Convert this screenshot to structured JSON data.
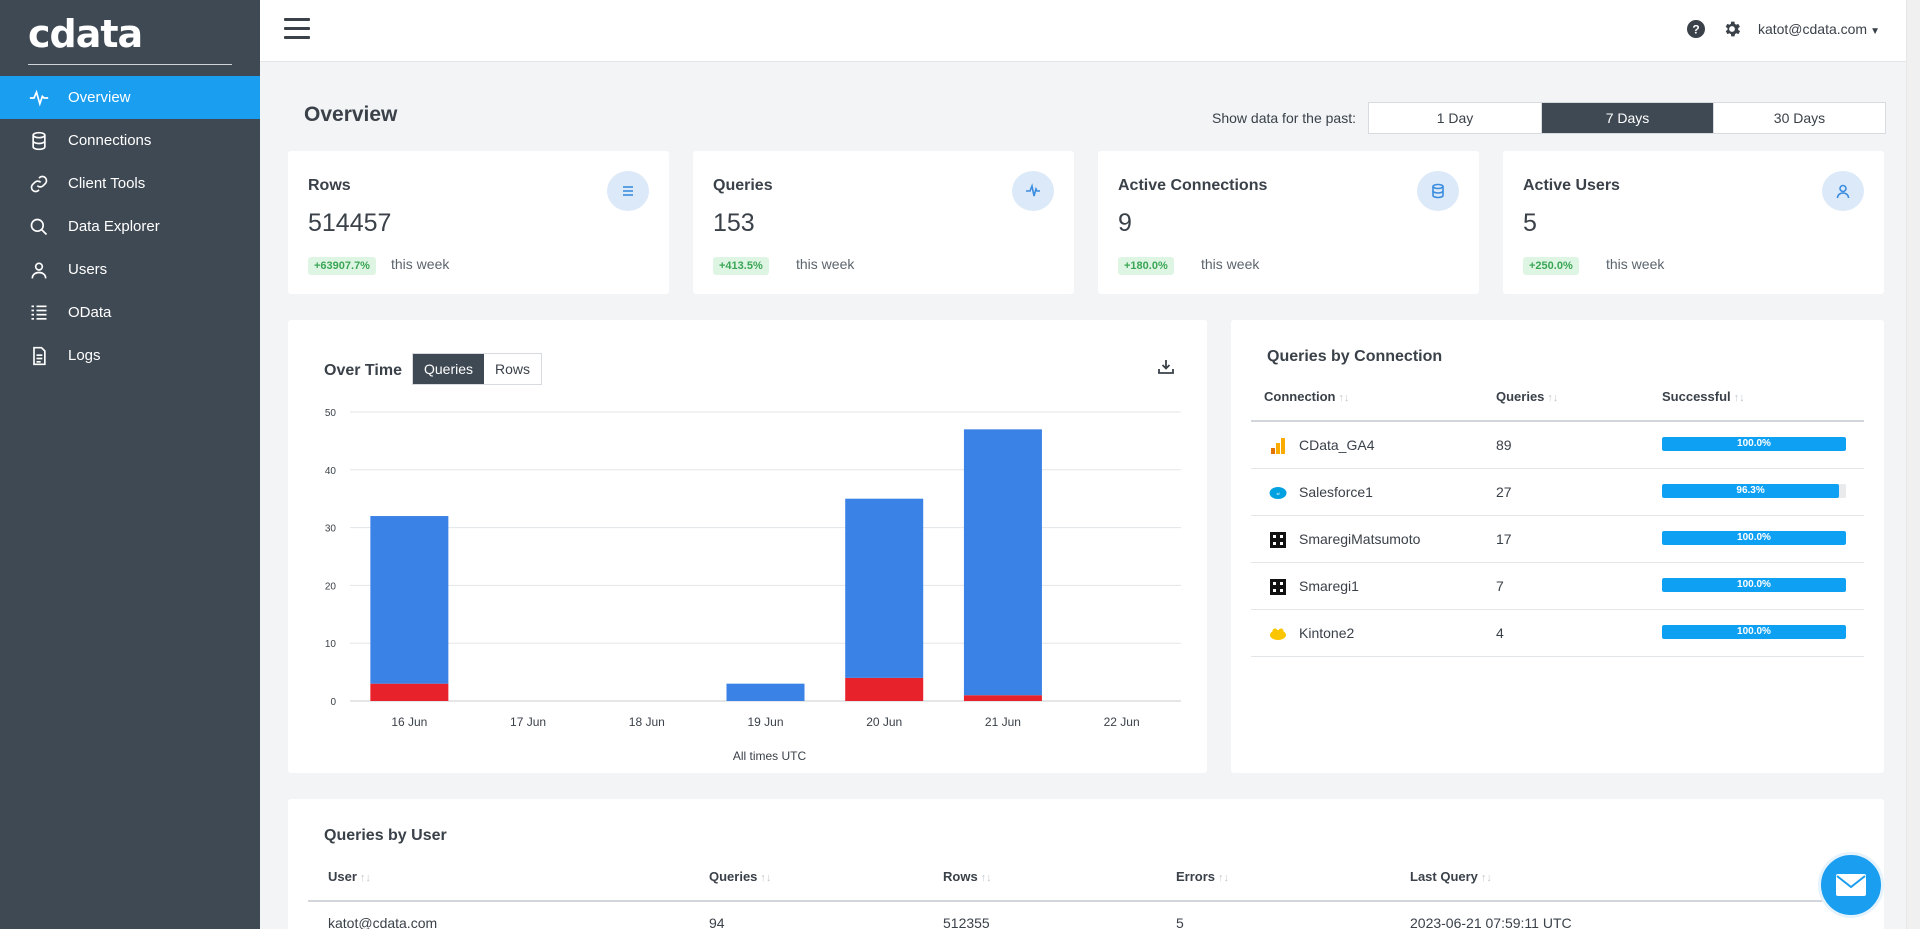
{
  "brand": {
    "logo_text": "cdata"
  },
  "nav": {
    "items": [
      {
        "label": "Overview",
        "icon": "pulse-icon",
        "active": true
      },
      {
        "label": "Connections",
        "icon": "database-icon"
      },
      {
        "label": "Client Tools",
        "icon": "link-icon"
      },
      {
        "label": "Data Explorer",
        "icon": "search-icon"
      },
      {
        "label": "Users",
        "icon": "user-icon"
      },
      {
        "label": "OData",
        "icon": "odata-icon"
      },
      {
        "label": "Logs",
        "icon": "document-icon"
      }
    ]
  },
  "header": {
    "user_email": "katot@cdata.com"
  },
  "page": {
    "title": "Overview"
  },
  "range": {
    "label": "Show data for the past:",
    "options": [
      "1 Day",
      "7 Days",
      "30 Days"
    ],
    "selected": "7 Days"
  },
  "stats": [
    {
      "title": "Rows",
      "value": "514457",
      "badge": "+63907.7%",
      "sub": "this week",
      "icon": "list-icon"
    },
    {
      "title": "Queries",
      "value": "153",
      "badge": "+413.5%",
      "sub": "this week",
      "icon": "pulse-icon"
    },
    {
      "title": "Active Connections",
      "value": "9",
      "badge": "+180.0%",
      "sub": "this week",
      "icon": "database-icon"
    },
    {
      "title": "Active Users",
      "value": "5",
      "badge": "+250.0%",
      "sub": "this week",
      "icon": "user-icon"
    }
  ],
  "over_time": {
    "title": "Over Time",
    "toggle": [
      "Queries",
      "Rows"
    ],
    "toggle_selected": "Queries",
    "footnote": "All times UTC"
  },
  "chart_data": {
    "type": "bar",
    "stacked": true,
    "categories": [
      "16 Jun",
      "17 Jun",
      "18 Jun",
      "19 Jun",
      "20 Jun",
      "21 Jun",
      "22 Jun"
    ],
    "series": [
      {
        "color": "#e8222a",
        "values": [
          3,
          0,
          0,
          0,
          4,
          1,
          0
        ]
      },
      {
        "color": "#3b82e6",
        "values": [
          29,
          0,
          0,
          3,
          31,
          46,
          0
        ]
      }
    ],
    "ylim": [
      0,
      50
    ],
    "yticks": [
      0,
      10,
      20,
      30,
      40,
      50
    ],
    "grid": true,
    "xlabel": "All times UTC"
  },
  "queries_by_connection": {
    "title": "Queries by Connection",
    "columns": [
      "Connection",
      "Queries",
      "Successful"
    ],
    "rows": [
      {
        "name": "CData_GA4",
        "queries": "89",
        "successful": 100.0,
        "successful_label": "100.0%",
        "icon": "google-analytics-icon"
      },
      {
        "name": "Salesforce1",
        "queries": "27",
        "successful": 96.3,
        "successful_label": "96.3%",
        "icon": "salesforce-icon"
      },
      {
        "name": "SmaregiMatsumoto",
        "queries": "17",
        "successful": 100.0,
        "successful_label": "100.0%",
        "icon": "smaregi-icon"
      },
      {
        "name": "Smaregi1",
        "queries": "7",
        "successful": 100.0,
        "successful_label": "100.0%",
        "icon": "smaregi-icon"
      },
      {
        "name": "Kintone2",
        "queries": "4",
        "successful": 100.0,
        "successful_label": "100.0%",
        "icon": "kintone-icon"
      }
    ]
  },
  "queries_by_user": {
    "title": "Queries by User",
    "columns": [
      "User",
      "Queries",
      "Rows",
      "Errors",
      "Last Query"
    ],
    "rows": [
      {
        "user": "katot@cdata.com",
        "queries": "94",
        "rows": "512355",
        "errors": "5",
        "last_query": "2023-06-21 07:59:11 UTC"
      }
    ]
  },
  "colors": {
    "sidebar": "#3f4953",
    "accent": "#1a9ef0",
    "badge_green": "#3aa655",
    "bar_blue": "#3b82e6",
    "bar_red": "#e8222a"
  }
}
